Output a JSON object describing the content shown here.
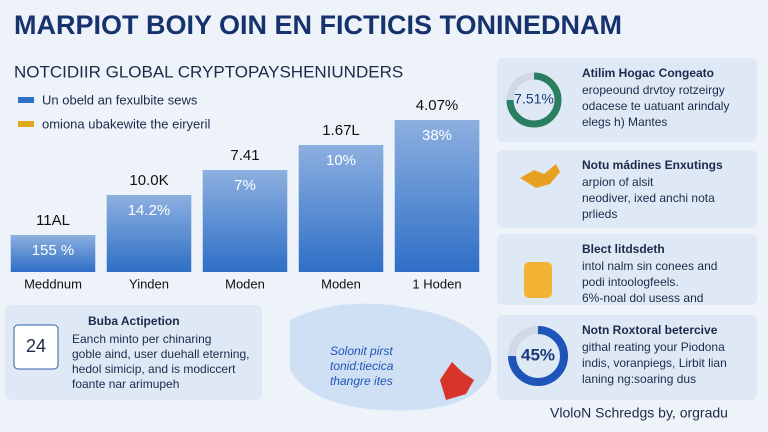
{
  "header": {
    "title": "MARPIOT BOIY OIN EN FICTICIS TONINEDNAM",
    "subtitle": "NOTCIDIIR GLOBAL CRYPTOPAYSHENIUNDERS"
  },
  "chart_data": {
    "type": "bar",
    "legend": [
      {
        "name": "Un obeld an fexulbite sews",
        "color": "#2f6fc6"
      },
      {
        "name": "omiona ubakewite the eiryeril",
        "color": "#e0a820"
      }
    ],
    "categories": [
      "Meddnum",
      "Yinden",
      "Moden",
      "Moden",
      "1 Hoden"
    ],
    "values": [
      37,
      77,
      102,
      127,
      152
    ],
    "top_labels": [
      "11AL",
      "10.0K",
      "7.41",
      "1.67L",
      "4.07%"
    ],
    "inner_labels": [
      "155 %",
      "14.2%",
      "7%",
      "10%",
      "38%"
    ],
    "color": "#2f6fc6",
    "ylim": [
      0,
      160
    ]
  },
  "cards": [
    {
      "value": "7.51%",
      "title": "Atilim Hogac Congeato",
      "lines": [
        "eropeound drvtoy rotzeirgy",
        "odacese te uatuant arindaly",
        "elegs h) Mantes"
      ]
    },
    {
      "title": "Notu mádines Enxutings",
      "lines": [
        "arpion of alsit",
        "neodiver, ixed anchi nota",
        "prlieds"
      ]
    },
    {
      "title": "Blect litdsdeth",
      "lines": [
        "intol nalm sin conees and",
        "podi intoologfeels.",
        "6%-noal dol usess and"
      ]
    },
    {
      "value": "45%",
      "title": "Notn Roxtoral betercive",
      "lines": [
        "githal reating your Piodona",
        "indis, voranpiegs, Lirbit lian",
        "laning ng:soaring dus"
      ]
    }
  ],
  "action": {
    "icon": "24",
    "title": "Buba Actipetion",
    "lines": [
      "Eanch minto per chinaring",
      "goble aind, user duehall eterning,",
      "hedol simicip, and is modiccert",
      "foante nar arimupeh"
    ]
  },
  "map_text": [
    "Solonit pirst",
    "tonid:tiecica",
    "thangre ites"
  ],
  "footer": "VloloN Schredgs by, orgradu"
}
